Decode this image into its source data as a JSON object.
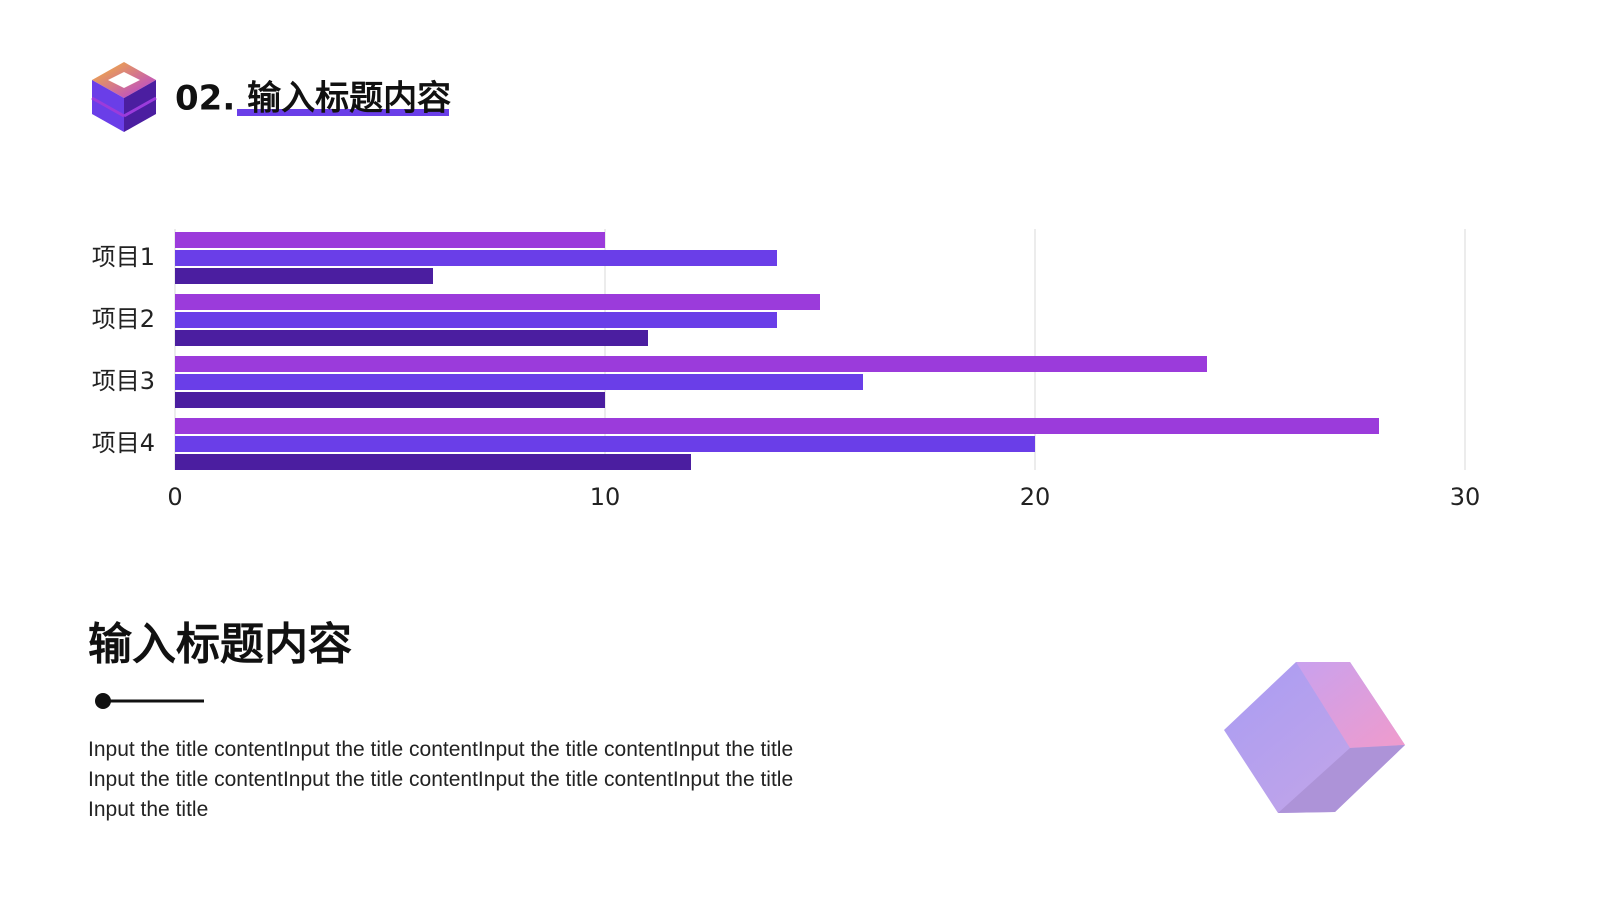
{
  "header": {
    "title": "02. 输入标题内容"
  },
  "chart_data": {
    "type": "hbar",
    "categories": [
      "项目1",
      "项目2",
      "项目3",
      "项目4"
    ],
    "series": [
      {
        "color": "#9b3bdb",
        "values": [
          10,
          15,
          24,
          28
        ]
      },
      {
        "color": "#6a3ee8",
        "values": [
          14,
          14,
          16,
          20
        ]
      },
      {
        "color": "#4b1ea0",
        "values": [
          6,
          11,
          10,
          12
        ]
      }
    ],
    "xlim": [
      0,
      30
    ],
    "xticks": [
      0,
      10,
      20,
      30
    ],
    "grid": true
  },
  "section": {
    "title": "输入标题内容",
    "body": "Input the title contentInput the title contentInput the title contentInput the title Input the title contentInput the title contentInput the title contentInput the title Input the title"
  }
}
